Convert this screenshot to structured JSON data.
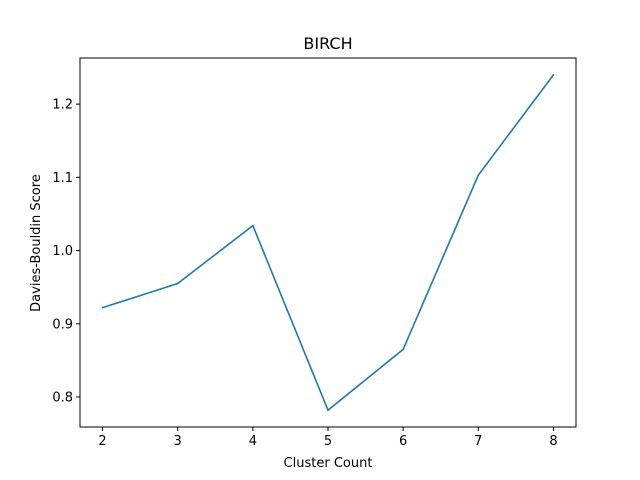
{
  "chart_data": {
    "type": "line",
    "title": "BIRCH",
    "xlabel": "Cluster Count",
    "ylabel": "Davies-Bouldin Score",
    "x": [
      2,
      3,
      4,
      5,
      6,
      7,
      8
    ],
    "series": [
      {
        "color": "#1f77b4",
        "values": [
          0.922,
          0.955,
          1.034,
          0.782,
          0.865,
          1.103,
          1.24
        ]
      }
    ],
    "xlim": [
      1.7,
      8.3
    ],
    "ylim": [
      0.759,
      1.263
    ],
    "xticks": [
      2,
      3,
      4,
      5,
      6,
      7,
      8
    ],
    "yticks": [
      0.8,
      0.9,
      1.0,
      1.1,
      1.2
    ],
    "ytick_labels": [
      "0.8",
      "0.9",
      "1.0",
      "1.1",
      "1.2"
    ],
    "grid": false,
    "legend": "none"
  }
}
